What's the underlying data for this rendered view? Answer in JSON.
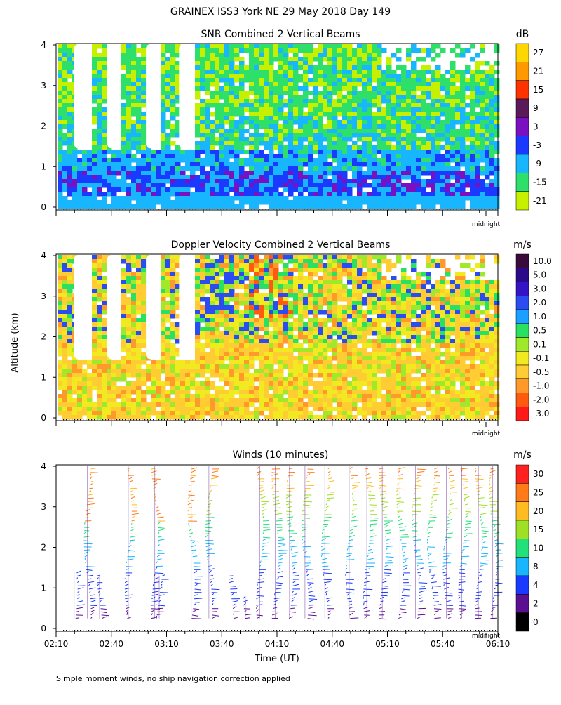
{
  "header": {
    "title": "GRAINEX ISS3 York NE  29 May 2018 Day 149"
  },
  "footer": {
    "note": "Simple moment winds, no ship navigation correction applied"
  },
  "shared_axes": {
    "ylabel": "Altitude (km)",
    "xlabel": "Time (UT)",
    "y_ticks": [
      "0",
      "1",
      "2",
      "3",
      "4"
    ],
    "x_ticks": [
      "02:10",
      "02:40",
      "03:10",
      "03:40",
      "04:10",
      "04:40",
      "05:10",
      "05:40",
      "06:10"
    ],
    "midnight_label": "midnight"
  },
  "colors": {
    "white": "#ffffff",
    "black": "#000000"
  },
  "chart_data": [
    {
      "type": "heatmap",
      "title": "SNR Combined 2 Vertical Beams",
      "unit": "dB",
      "xlim": [
        "02:10",
        "06:10"
      ],
      "ylim": [
        0,
        4
      ],
      "gaps_hours_x": [
        [
          2.33,
          2.45
        ],
        [
          2.63,
          2.75
        ],
        [
          2.98,
          3.09
        ],
        [
          3.28,
          3.38
        ]
      ],
      "colorbar": {
        "labels": [
          "27",
          "21",
          "15",
          "9",
          "3",
          "-3",
          "-9",
          "-15",
          "-21"
        ],
        "colors": [
          "#ffd700",
          "#ff9900",
          "#ff3300",
          "#5a1a5a",
          "#7a10c0",
          "#1a3bff",
          "#18b6ff",
          "#2ee06a",
          "#c6f000"
        ]
      }
    },
    {
      "type": "heatmap",
      "title": "Doppler Velocity Combined 2 Vertical Beams",
      "unit": "m/s",
      "xlim": [
        "02:10",
        "06:10"
      ],
      "ylim": [
        0,
        4
      ],
      "gaps_hours_x": [
        [
          2.33,
          2.45
        ],
        [
          2.63,
          2.75
        ],
        [
          2.98,
          3.09
        ],
        [
          3.28,
          3.38
        ]
      ],
      "colorbar": {
        "labels": [
          "10.0",
          "5.0",
          "3.0",
          "2.0",
          "1.0",
          "0.5",
          "0.1",
          "-0.1",
          "-0.5",
          "-1.0",
          "-2.0",
          "-3.0"
        ],
        "colors": [
          "#3a0a3a",
          "#2b0a8a",
          "#3514c6",
          "#2a4cf0",
          "#1aa0ff",
          "#2ae060",
          "#9fe82a",
          "#f2ea20",
          "#ffcc33",
          "#ff9a2a",
          "#ff5a10",
          "#ff1a1a"
        ]
      }
    },
    {
      "type": "heatmap",
      "title": "Winds (10 minutes)",
      "unit": "m/s",
      "xlim": [
        "02:10",
        "06:10"
      ],
      "ylim": [
        0,
        4
      ],
      "profile_times_hours": [
        2.33,
        2.45,
        2.56,
        2.82,
        3.06,
        3.1,
        3.39,
        3.55,
        3.75,
        3.88,
        4.01,
        4.15,
        4.28,
        4.42,
        4.6,
        4.82,
        4.98,
        5.12,
        5.28,
        5.42,
        5.56,
        5.7,
        5.84,
        5.99,
        6.12
      ],
      "colorbar": {
        "labels": [
          "30",
          "25",
          "20",
          "15",
          "10",
          "8",
          "4",
          "2",
          "0"
        ],
        "colors": [
          "#ff2020",
          "#ff7a18",
          "#ffbb22",
          "#9fe024",
          "#22e07a",
          "#18b6ff",
          "#1a3bff",
          "#5a1090",
          "#000000"
        ]
      }
    }
  ]
}
